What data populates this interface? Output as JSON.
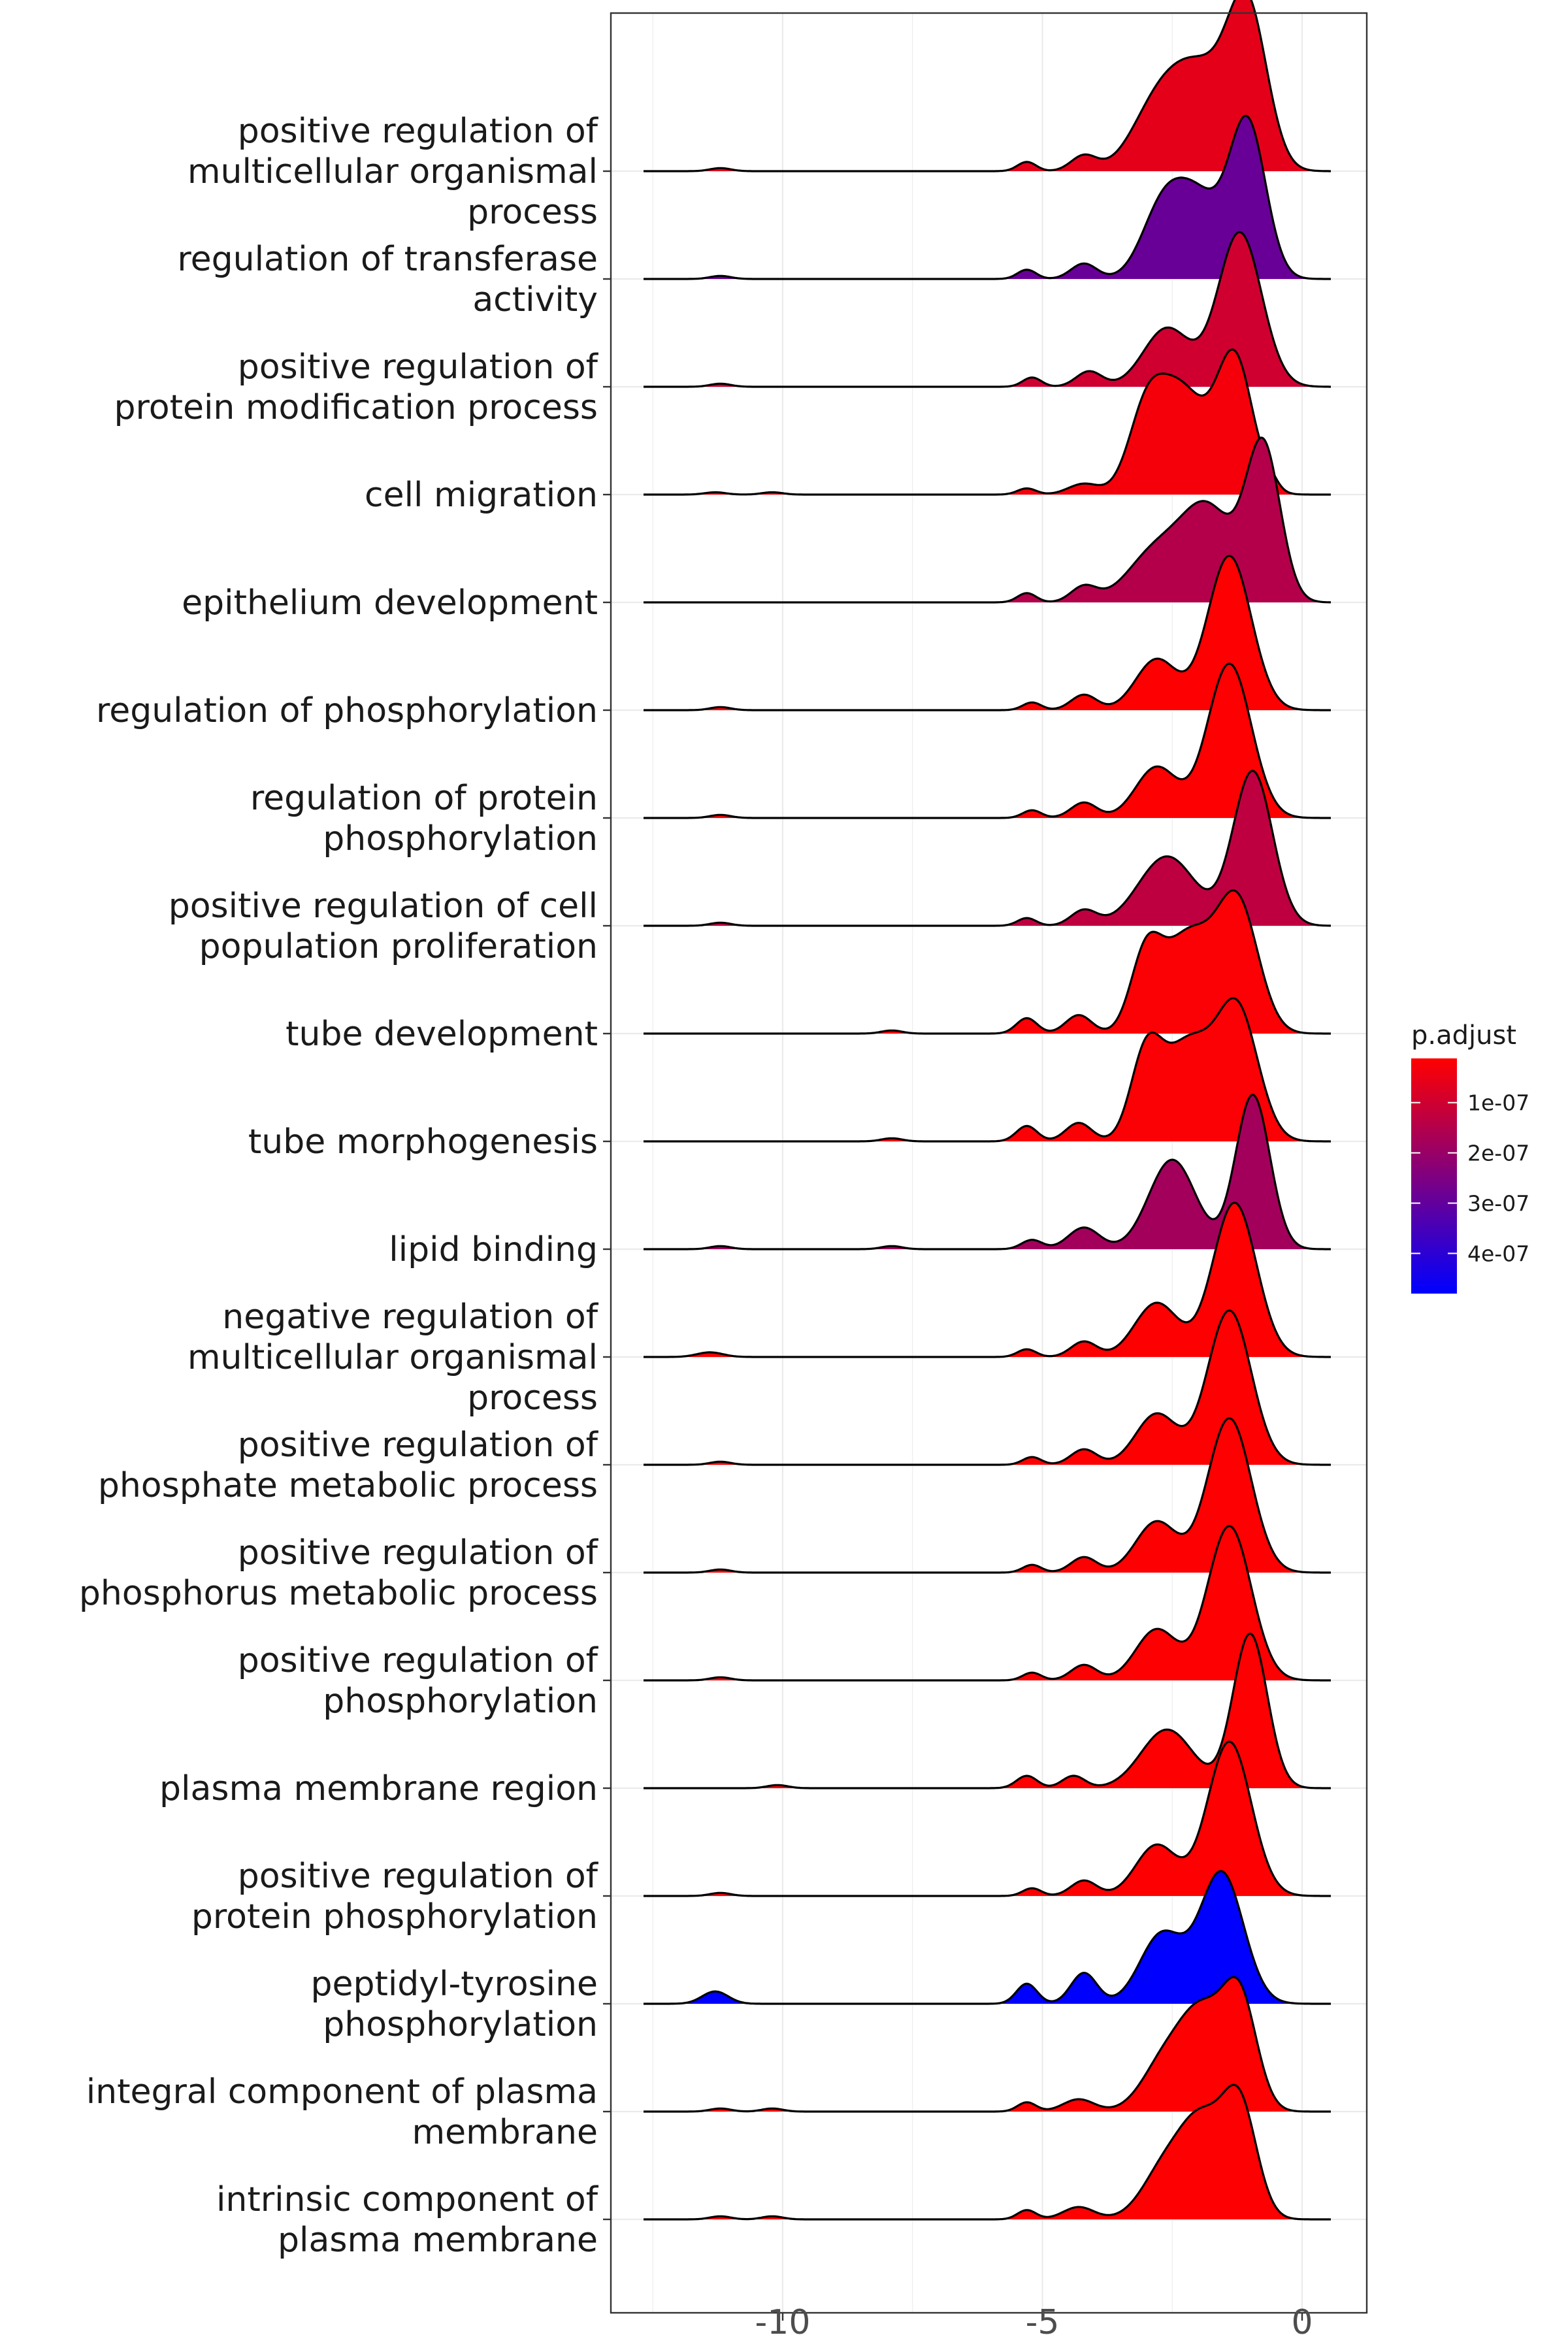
{
  "chart_data": {
    "type": "ridgeline",
    "x_ticks": [
      -10,
      -5,
      0
    ],
    "x_tick_labels": [
      "-10",
      "-5",
      "0"
    ],
    "xlim": [
      -13.4,
      1.2
    ],
    "grid": true,
    "legend": {
      "title": "p.adjust",
      "placement": "right",
      "range": [
        1.2e-08,
        4.8e-07
      ],
      "ticks": [
        1e-07,
        2e-07,
        3e-07,
        4e-07
      ],
      "tick_labels": [
        "1e-07",
        "2e-07",
        "3e-07",
        "4e-07"
      ],
      "low_color": "#ff0000",
      "high_color": "#0000ff"
    },
    "series": [
      {
        "label": "positive regulation of\nmulticellular organismal\nprocess",
        "p_adjust": 6e-08,
        "bumps": [
          [
            -11.2,
            0.02,
            0.2
          ],
          [
            -5.3,
            0.06,
            0.18
          ],
          [
            -4.2,
            0.1,
            0.25
          ],
          [
            -2.8,
            0.38,
            0.5
          ],
          [
            -1.95,
            0.6,
            0.55
          ],
          [
            -1.05,
            1.0,
            0.38
          ]
        ]
      },
      {
        "label": "regulation of transferase\nactivity",
        "p_adjust": 2.9e-07,
        "bumps": [
          [
            -11.2,
            0.02,
            0.2
          ],
          [
            -5.3,
            0.06,
            0.18
          ],
          [
            -4.2,
            0.1,
            0.25
          ],
          [
            -2.7,
            0.42,
            0.4
          ],
          [
            -2.0,
            0.5,
            0.45
          ],
          [
            -1.05,
            1.0,
            0.35
          ]
        ]
      },
      {
        "label": "positive regulation of\nprotein modification process",
        "p_adjust": 1e-07,
        "bumps": [
          [
            -11.2,
            0.02,
            0.2
          ],
          [
            -5.2,
            0.06,
            0.18
          ],
          [
            -4.1,
            0.1,
            0.25
          ],
          [
            -2.6,
            0.38,
            0.45
          ],
          [
            -1.2,
            1.0,
            0.42
          ]
        ]
      },
      {
        "label": "cell migration",
        "p_adjust": 3e-08,
        "bumps": [
          [
            -11.3,
            0.015,
            0.2
          ],
          [
            -10.2,
            0.015,
            0.2
          ],
          [
            -5.3,
            0.04,
            0.18
          ],
          [
            -4.2,
            0.07,
            0.3
          ],
          [
            -3.0,
            0.5,
            0.35
          ],
          [
            -2.3,
            0.65,
            0.45
          ],
          [
            -1.3,
            0.88,
            0.35
          ],
          [
            -0.6,
            0.05,
            0.15
          ]
        ]
      },
      {
        "label": "epithelium development",
        "p_adjust": 1.5e-07,
        "bumps": [
          [
            -5.3,
            0.06,
            0.18
          ],
          [
            -4.2,
            0.1,
            0.25
          ],
          [
            -2.8,
            0.33,
            0.55
          ],
          [
            -1.8,
            0.58,
            0.5
          ],
          [
            -0.75,
            1.0,
            0.33
          ]
        ]
      },
      {
        "label": "regulation of phosphorylation",
        "p_adjust": 1.5e-08,
        "bumps": [
          [
            -11.2,
            0.02,
            0.2
          ],
          [
            -5.2,
            0.05,
            0.18
          ],
          [
            -4.2,
            0.1,
            0.25
          ],
          [
            -2.8,
            0.33,
            0.4
          ],
          [
            -1.4,
            1.0,
            0.42
          ]
        ]
      },
      {
        "label": "regulation of protein\nphosphorylation",
        "p_adjust": 1.5e-08,
        "bumps": [
          [
            -11.2,
            0.02,
            0.2
          ],
          [
            -5.2,
            0.05,
            0.18
          ],
          [
            -4.2,
            0.1,
            0.25
          ],
          [
            -2.8,
            0.33,
            0.4
          ],
          [
            -1.4,
            1.0,
            0.42
          ]
        ]
      },
      {
        "label": "positive regulation of cell\npopulation proliferation",
        "p_adjust": 1.3e-07,
        "bumps": [
          [
            -11.2,
            0.02,
            0.2
          ],
          [
            -5.3,
            0.05,
            0.18
          ],
          [
            -4.2,
            0.1,
            0.25
          ],
          [
            -2.6,
            0.45,
            0.55
          ],
          [
            -0.95,
            1.0,
            0.38
          ]
        ]
      },
      {
        "label": "tube development",
        "p_adjust": 2e-08,
        "bumps": [
          [
            -7.9,
            0.02,
            0.2
          ],
          [
            -5.3,
            0.1,
            0.2
          ],
          [
            -4.3,
            0.12,
            0.25
          ],
          [
            -3.0,
            0.5,
            0.3
          ],
          [
            -2.2,
            0.62,
            0.45
          ],
          [
            -1.25,
            0.85,
            0.4
          ]
        ]
      },
      {
        "label": "tube morphogenesis",
        "p_adjust": 2e-08,
        "bumps": [
          [
            -7.9,
            0.02,
            0.2
          ],
          [
            -5.3,
            0.1,
            0.2
          ],
          [
            -4.3,
            0.12,
            0.25
          ],
          [
            -3.0,
            0.55,
            0.3
          ],
          [
            -2.2,
            0.62,
            0.45
          ],
          [
            -1.25,
            0.85,
            0.4
          ]
        ]
      },
      {
        "label": "lipid binding",
        "p_adjust": 1.8e-07,
        "bumps": [
          [
            -11.2,
            0.02,
            0.2
          ],
          [
            -7.9,
            0.02,
            0.2
          ],
          [
            -5.2,
            0.06,
            0.2
          ],
          [
            -4.2,
            0.14,
            0.3
          ],
          [
            -2.5,
            0.58,
            0.45
          ],
          [
            -0.95,
            1.0,
            0.33
          ]
        ]
      },
      {
        "label": "negative regulation of\nmulticellular organismal\nprocess",
        "p_adjust": 1.5e-08,
        "bumps": [
          [
            -11.4,
            0.03,
            0.25
          ],
          [
            -5.3,
            0.05,
            0.18
          ],
          [
            -4.2,
            0.1,
            0.25
          ],
          [
            -2.8,
            0.35,
            0.42
          ],
          [
            -1.3,
            1.0,
            0.42
          ]
        ]
      },
      {
        "label": "positive regulation of\nphosphate metabolic process",
        "p_adjust": 1.5e-08,
        "bumps": [
          [
            -11.2,
            0.02,
            0.2
          ],
          [
            -5.2,
            0.05,
            0.18
          ],
          [
            -4.2,
            0.1,
            0.25
          ],
          [
            -2.8,
            0.33,
            0.4
          ],
          [
            -1.4,
            1.0,
            0.42
          ]
        ]
      },
      {
        "label": "positive regulation of\nphosphorus metabolic process",
        "p_adjust": 1.5e-08,
        "bumps": [
          [
            -11.2,
            0.02,
            0.2
          ],
          [
            -5.2,
            0.05,
            0.18
          ],
          [
            -4.2,
            0.1,
            0.25
          ],
          [
            -2.8,
            0.33,
            0.4
          ],
          [
            -1.4,
            1.0,
            0.42
          ]
        ]
      },
      {
        "label": "positive regulation of\nphosphorylation",
        "p_adjust": 1.5e-08,
        "bumps": [
          [
            -11.2,
            0.02,
            0.2
          ],
          [
            -5.2,
            0.05,
            0.18
          ],
          [
            -4.2,
            0.1,
            0.25
          ],
          [
            -2.8,
            0.33,
            0.4
          ],
          [
            -1.4,
            1.0,
            0.42
          ]
        ]
      },
      {
        "label": "plasma membrane region",
        "p_adjust": 1.5e-08,
        "bumps": [
          [
            -10.1,
            0.02,
            0.2
          ],
          [
            -5.3,
            0.08,
            0.2
          ],
          [
            -4.4,
            0.08,
            0.22
          ],
          [
            -2.6,
            0.38,
            0.5
          ],
          [
            -1.0,
            1.0,
            0.33
          ]
        ]
      },
      {
        "label": "positive regulation of\nprotein phosphorylation",
        "p_adjust": 1.5e-08,
        "bumps": [
          [
            -11.2,
            0.02,
            0.2
          ],
          [
            -5.2,
            0.05,
            0.18
          ],
          [
            -4.2,
            0.1,
            0.25
          ],
          [
            -2.8,
            0.33,
            0.4
          ],
          [
            -1.4,
            1.0,
            0.42
          ]
        ]
      },
      {
        "label": "peptidyl-tyrosine\nphosphorylation",
        "p_adjust": 4.8e-07,
        "bumps": [
          [
            -11.3,
            0.08,
            0.25
          ],
          [
            -5.3,
            0.13,
            0.2
          ],
          [
            -4.2,
            0.2,
            0.25
          ],
          [
            -2.7,
            0.45,
            0.42
          ],
          [
            -1.55,
            0.85,
            0.42
          ]
        ]
      },
      {
        "label": "integral component of plasma\nmembrane",
        "p_adjust": 1.5e-08,
        "bumps": [
          [
            -11.2,
            0.02,
            0.2
          ],
          [
            -10.2,
            0.02,
            0.2
          ],
          [
            -5.3,
            0.06,
            0.18
          ],
          [
            -4.3,
            0.08,
            0.3
          ],
          [
            -2.6,
            0.35,
            0.45
          ],
          [
            -1.9,
            0.55,
            0.4
          ],
          [
            -1.2,
            0.72,
            0.33
          ]
        ]
      },
      {
        "label": "intrinsic component of\nplasma membrane",
        "p_adjust": 1.5e-08,
        "bumps": [
          [
            -11.2,
            0.02,
            0.2
          ],
          [
            -10.2,
            0.02,
            0.2
          ],
          [
            -5.3,
            0.06,
            0.18
          ],
          [
            -4.3,
            0.08,
            0.3
          ],
          [
            -2.6,
            0.35,
            0.45
          ],
          [
            -1.9,
            0.55,
            0.4
          ],
          [
            -1.2,
            0.72,
            0.33
          ]
        ]
      }
    ]
  }
}
